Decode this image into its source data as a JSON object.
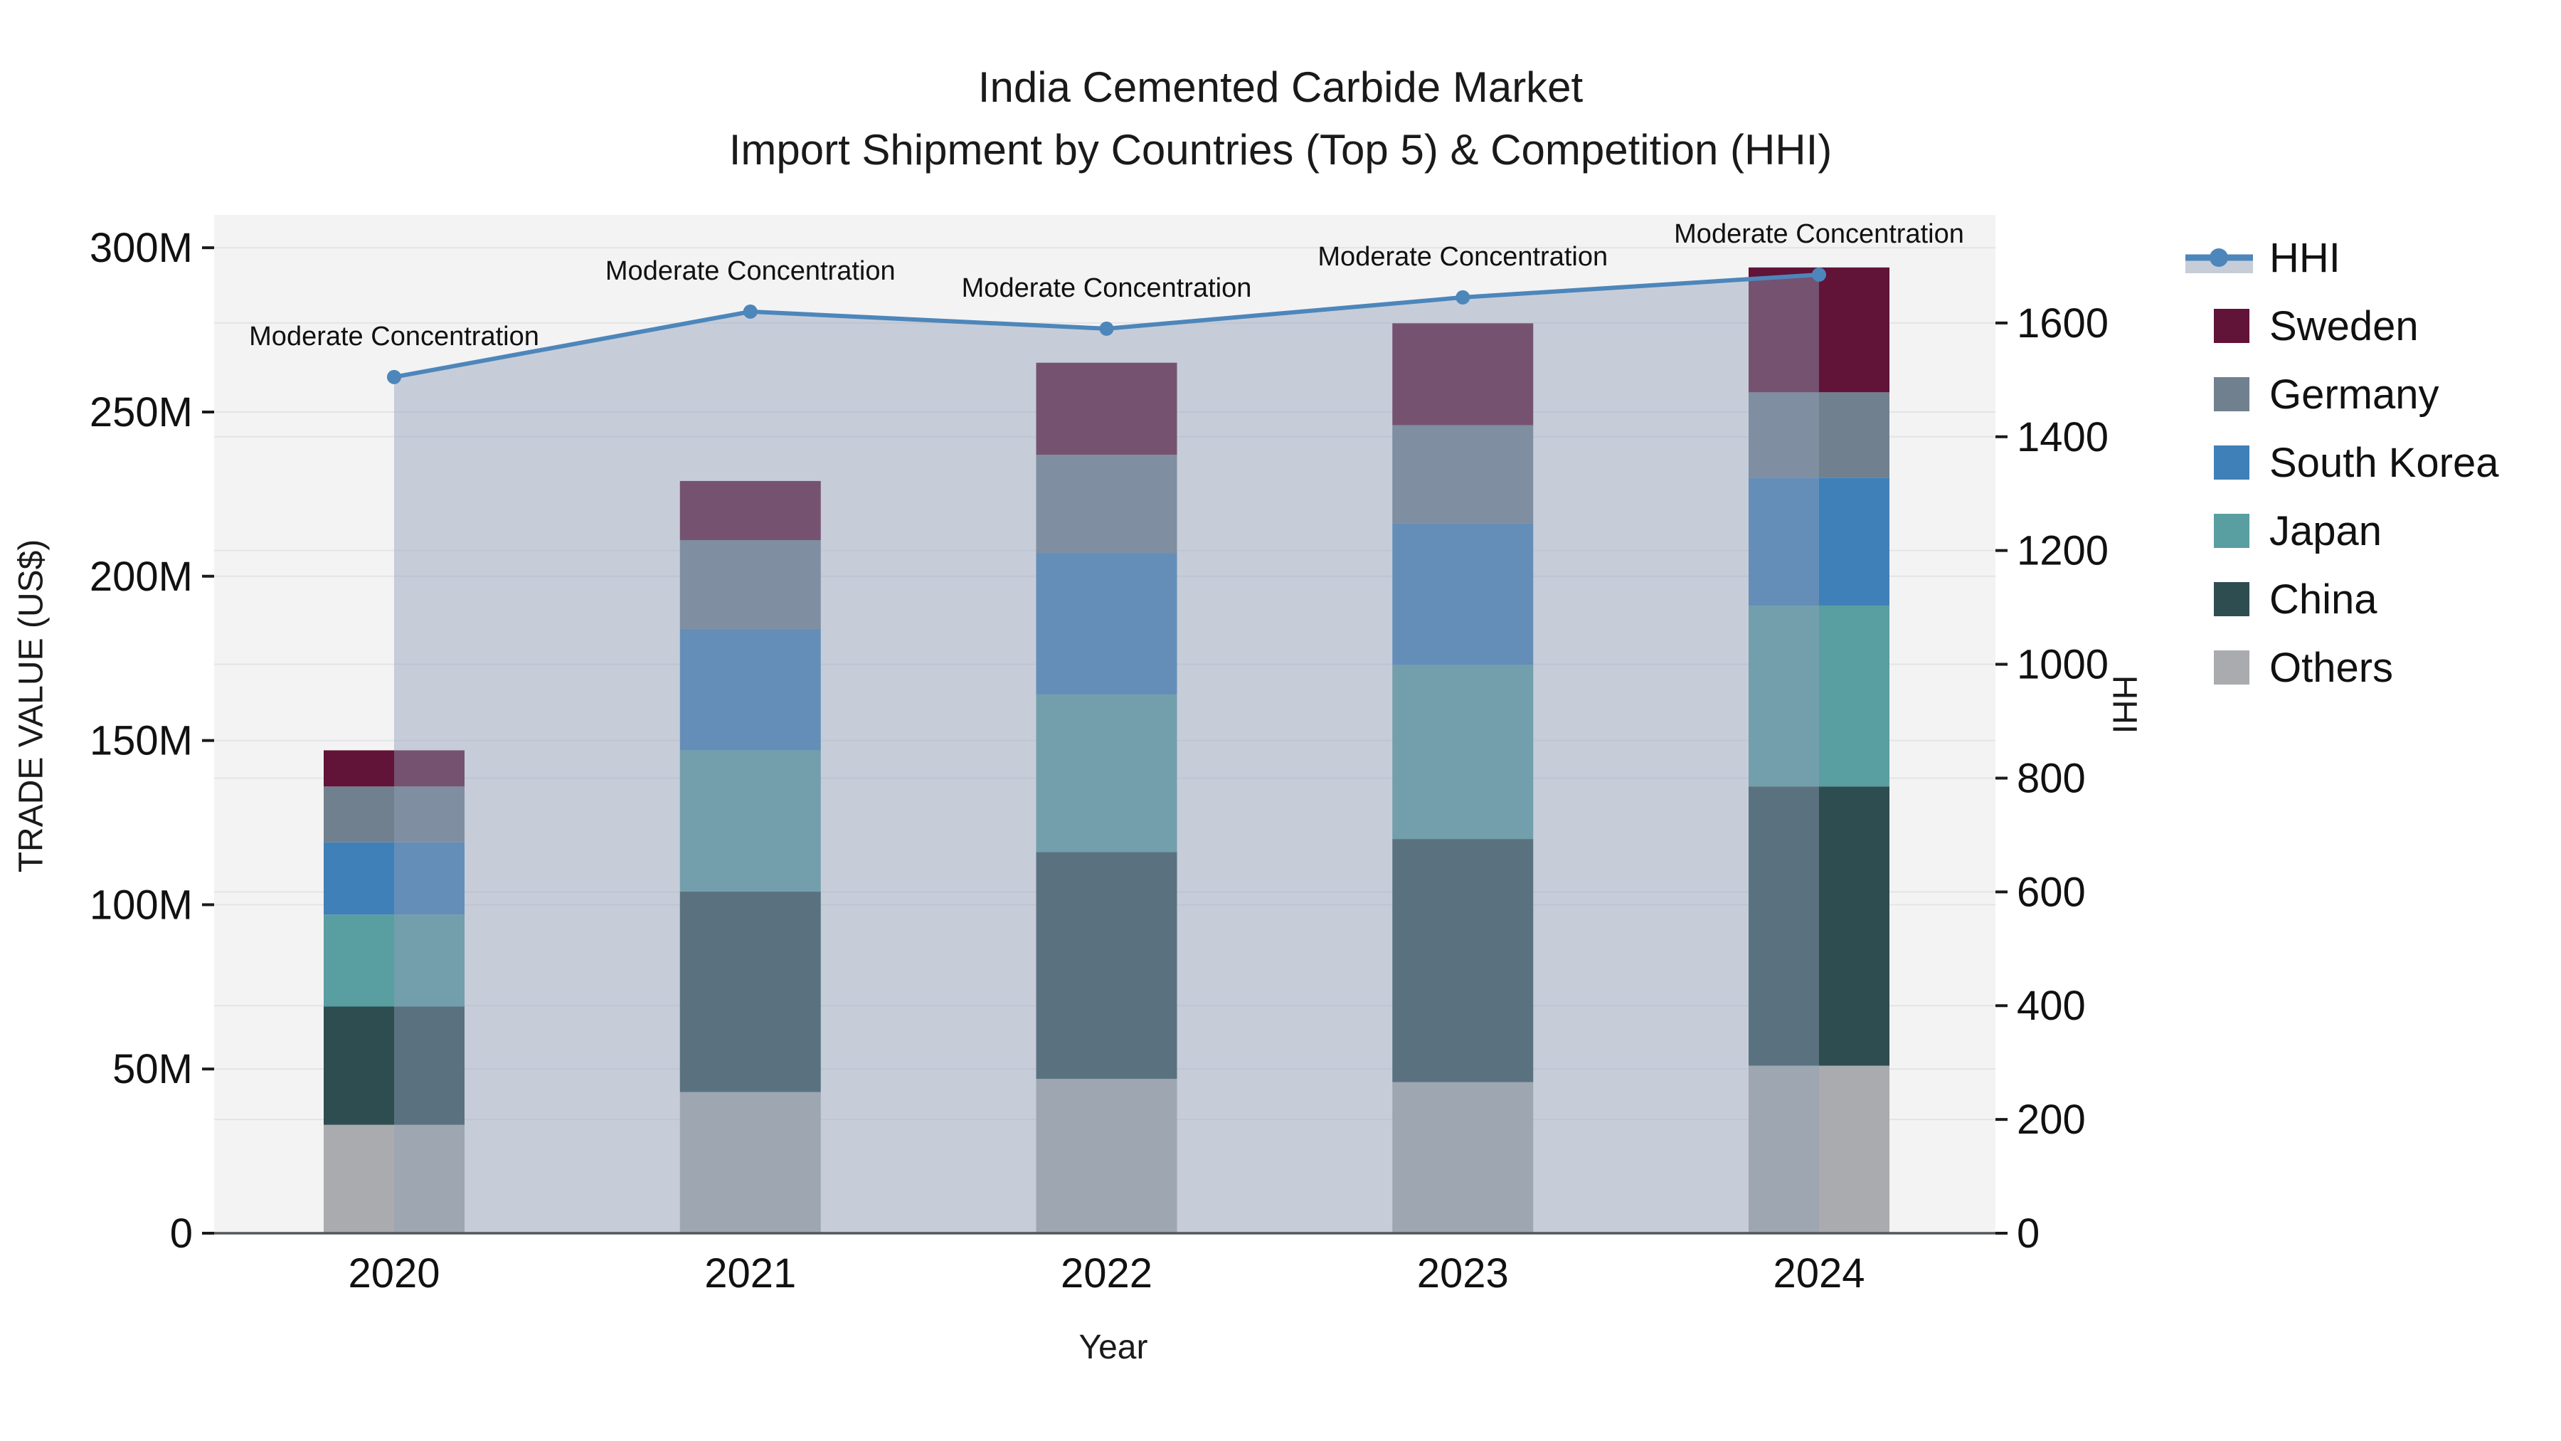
{
  "title": {
    "line1": "India Cemented Carbide Market",
    "line2": "Import Shipment by Countries (Top 5) & Competition (HHI)"
  },
  "axes": {
    "x_title": "Year",
    "y_left_title": "TRADE VALUE (US$)",
    "y_right_title": "HHI",
    "y_left_tick_labels": [
      "0",
      "50M",
      "100M",
      "150M",
      "200M",
      "250M",
      "300M"
    ],
    "y_left_tick_values": [
      0,
      50,
      100,
      150,
      200,
      250,
      300
    ],
    "y_right_tick_labels": [
      "0",
      "200",
      "400",
      "600",
      "800",
      "1000",
      "1200",
      "1400",
      "1600"
    ],
    "y_right_tick_values": [
      0,
      200,
      400,
      600,
      800,
      1000,
      1200,
      1400,
      1600
    ]
  },
  "chart_data": {
    "type": "bar+line",
    "stacked": true,
    "unit": "US$ millions (left axis), HHI index (right axis)",
    "categories": [
      "2020",
      "2021",
      "2022",
      "2023",
      "2024"
    ],
    "series": [
      {
        "name": "Others",
        "color": "#A9ABAE",
        "values": [
          33,
          43,
          47,
          46,
          51
        ]
      },
      {
        "name": "China",
        "color": "#2E4D50",
        "values": [
          36,
          61,
          69,
          74,
          85
        ]
      },
      {
        "name": "Japan",
        "color": "#599EA0",
        "values": [
          28,
          43,
          48,
          53,
          55
        ]
      },
      {
        "name": "South Korea",
        "color": "#4080B8",
        "values": [
          22,
          37,
          43,
          43,
          39
        ]
      },
      {
        "name": "Germany",
        "color": "#71808F",
        "values": [
          17,
          27,
          30,
          30,
          26
        ]
      },
      {
        "name": "Sweden",
        "color": "#611338",
        "values": [
          11,
          18,
          28,
          31,
          38
        ]
      }
    ],
    "bar_totals": [
      147,
      229,
      265,
      277,
      294
    ],
    "line_series": {
      "name": "HHI",
      "axis": "right",
      "color": "#4D86BA",
      "fill_color": "rgba(144,160,183,0.45)",
      "values": [
        1505,
        1620,
        1590,
        1645,
        1685
      ]
    },
    "annotations": [
      {
        "text": "Moderate Concentration",
        "category": "2020"
      },
      {
        "text": "Moderate Concentration",
        "category": "2021"
      },
      {
        "text": "Moderate Concentration",
        "category": "2022"
      },
      {
        "text": "Moderate Concentration",
        "category": "2023"
      },
      {
        "text": "Moderate Concentration",
        "category": "2024"
      }
    ],
    "ylim_left": [
      0,
      310
    ],
    "ylim_right": [
      0,
      1790
    ],
    "grid": true,
    "legend_position": "right"
  },
  "legend": {
    "items": [
      {
        "label": "HHI",
        "type": "line",
        "color": "#4D86BA"
      },
      {
        "label": "Sweden",
        "type": "patch",
        "color": "#611338"
      },
      {
        "label": "Germany",
        "type": "patch",
        "color": "#71808F"
      },
      {
        "label": "South Korea",
        "type": "patch",
        "color": "#4080B8"
      },
      {
        "label": "Japan",
        "type": "patch",
        "color": "#599EA0"
      },
      {
        "label": "China",
        "type": "patch",
        "color": "#2E4D50"
      },
      {
        "label": "Others",
        "type": "patch",
        "color": "#A9ABAE"
      }
    ]
  },
  "colors": {
    "plot_bg": "#F3F3F4",
    "grid": "#E3E4E7",
    "axis_line": "#54575B",
    "tick_mark": "#1A1A1A",
    "text": "#111111"
  }
}
